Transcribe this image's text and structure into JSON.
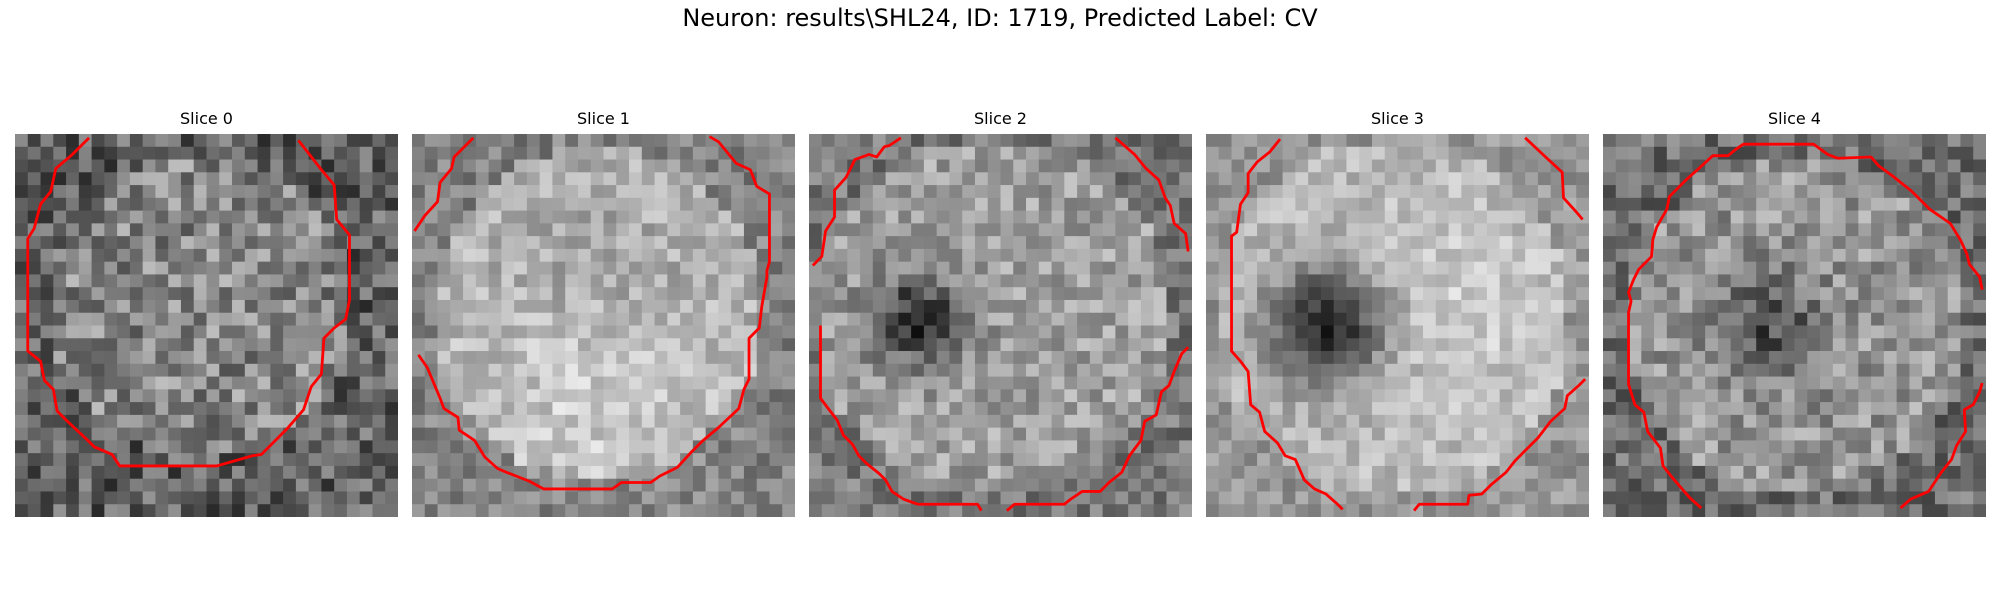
{
  "figure": {
    "title": "Neuron: results\\SHL24, ID: 1719, Predicted Label: CV"
  },
  "slices": [
    {
      "title": "Slice 0"
    },
    {
      "title": "Slice 1"
    },
    {
      "title": "Slice 2"
    },
    {
      "title": "Slice 3"
    },
    {
      "title": "Slice 4"
    }
  ],
  "colors": {
    "contour": "#ff0000"
  }
}
